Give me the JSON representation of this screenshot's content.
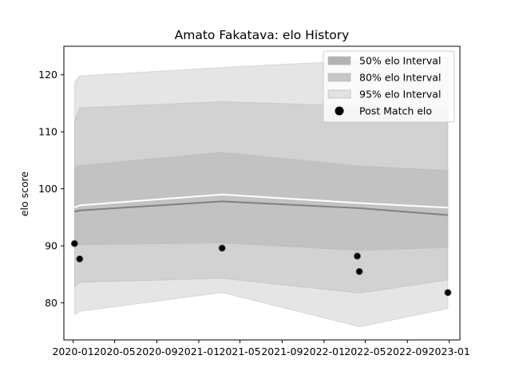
{
  "chart_data": {
    "type": "area",
    "title": "Amato Fakatava: elo History",
    "xlabel": "",
    "ylabel": "elo score",
    "xlim": [
      "2019-12-05",
      "2023-02-01"
    ],
    "ylim": [
      73.5,
      125
    ],
    "x_ticks": [
      "2020-01",
      "2020-05",
      "2020-09",
      "2021-01",
      "2021-05",
      "2021-09",
      "2022-01",
      "2022-05",
      "2022-09",
      "2023-01"
    ],
    "y_ticks": [
      80,
      90,
      100,
      110,
      120
    ],
    "legend_position": "top-right",
    "colors": {
      "band95": "#e5e5e5",
      "band80": "#cfcfcf",
      "band50": "#bfbfbf",
      "mean_line": "#808080",
      "upper_line": "#ffffff",
      "points": "#000000"
    },
    "dates": [
      "2020-01-05",
      "2020-01-20",
      "2021-03-10",
      "2022-04-15",
      "2022-12-28"
    ],
    "series": [
      {
        "name": "95% elo Interval",
        "lower": [
          77.9,
          78.5,
          81.8,
          75.8,
          79.0
        ],
        "upper": [
          118.7,
          119.8,
          121.3,
          122.5,
          123.0
        ]
      },
      {
        "name": "80% elo Interval",
        "lower": [
          82.8,
          83.6,
          84.3,
          81.7,
          84.0
        ],
        "upper": [
          112.0,
          114.2,
          115.3,
          114.5,
          113.8
        ]
      },
      {
        "name": "50% elo Interval",
        "lower": [
          90.1,
          90.2,
          90.5,
          89.2,
          89.7
        ],
        "upper": [
          103.8,
          104.1,
          106.4,
          104.0,
          103.2
        ]
      }
    ],
    "mean": [
      96.0,
      96.2,
      97.8,
      96.6,
      95.4
    ],
    "upper_line": [
      96.7,
      97.1,
      99.0,
      97.5,
      96.7
    ],
    "points": {
      "name": "Post Match elo",
      "x": [
        "2020-01-05",
        "2020-01-20",
        "2021-03-10",
        "2022-04-08",
        "2022-04-14",
        "2022-12-28"
      ],
      "y": [
        90.4,
        87.7,
        89.6,
        88.2,
        85.5,
        81.8
      ]
    },
    "legend": [
      "50% elo Interval",
      "80% elo Interval",
      "95% elo Interval",
      "Post Match elo"
    ]
  }
}
